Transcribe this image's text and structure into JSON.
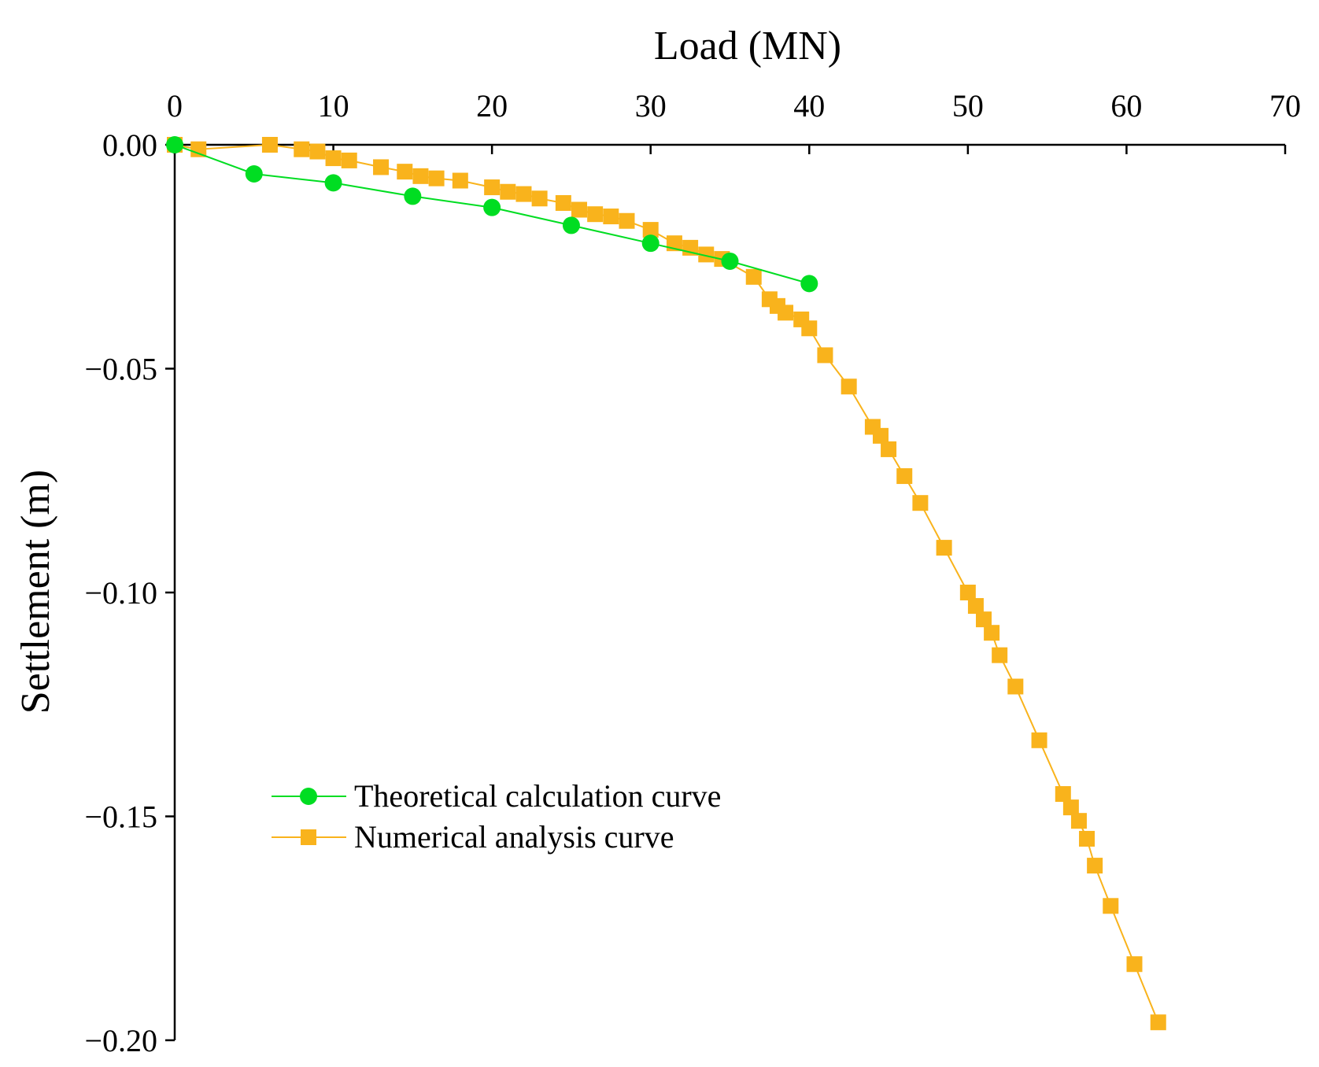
{
  "chart_data": {
    "type": "line",
    "xlabel": "Load (MN)",
    "ylabel": "Settlement (m)",
    "x_axis_position": "top",
    "xlim": [
      0,
      70
    ],
    "ylim": [
      -0.2,
      0.0
    ],
    "x_ticks": [
      0,
      10,
      20,
      30,
      40,
      50,
      60,
      70
    ],
    "x_tick_labels": [
      "0",
      "10",
      "20",
      "30",
      "40",
      "50",
      "60",
      "70"
    ],
    "y_ticks": [
      0.0,
      -0.05,
      -0.1,
      -0.15,
      -0.2
    ],
    "y_tick_labels": [
      "0.00",
      "−0.05",
      "−0.10",
      "−0.15",
      "−0.20"
    ],
    "grid": false,
    "legend_position": "lower-left",
    "series": [
      {
        "name": "Theoretical calculation curve",
        "color": "#00dd22",
        "marker": "circle",
        "x": [
          0,
          5,
          10,
          15,
          20,
          25,
          30,
          35,
          40
        ],
        "y": [
          0.0,
          -0.0065,
          -0.0085,
          -0.0115,
          -0.014,
          -0.018,
          -0.022,
          -0.026,
          -0.031
        ]
      },
      {
        "name": "Numerical analysis curve",
        "color": "#f9b31c",
        "marker": "square",
        "x": [
          0,
          1.5,
          6,
          8,
          9,
          10,
          11,
          13,
          14.5,
          15.5,
          16.5,
          18,
          20,
          21,
          22,
          23,
          24.5,
          25.5,
          26.5,
          27.5,
          28.5,
          30,
          31.5,
          32.5,
          33.5,
          34.5,
          36.5,
          37.5,
          38,
          38.5,
          39.5,
          40,
          41,
          42.5,
          44,
          44.5,
          45,
          46,
          47,
          48.5,
          50,
          50.5,
          51,
          51.5,
          52,
          53,
          54.5,
          56,
          56.5,
          57,
          57.5,
          58,
          59,
          60.5,
          62
        ],
        "y": [
          0.0,
          -0.001,
          -0.0,
          -0.001,
          -0.0015,
          -0.003,
          -0.0035,
          -0.005,
          -0.006,
          -0.007,
          -0.0075,
          -0.008,
          -0.0095,
          -0.0105,
          -0.011,
          -0.012,
          -0.013,
          -0.0145,
          -0.0155,
          -0.016,
          -0.017,
          -0.019,
          -0.022,
          -0.023,
          -0.0245,
          -0.0255,
          -0.0295,
          -0.0345,
          -0.036,
          -0.0375,
          -0.039,
          -0.041,
          -0.047,
          -0.054,
          -0.063,
          -0.065,
          -0.068,
          -0.074,
          -0.08,
          -0.09,
          -0.1,
          -0.103,
          -0.106,
          -0.109,
          -0.114,
          -0.121,
          -0.133,
          -0.145,
          -0.148,
          -0.151,
          -0.155,
          -0.161,
          -0.17,
          -0.183,
          -0.196
        ]
      }
    ]
  }
}
